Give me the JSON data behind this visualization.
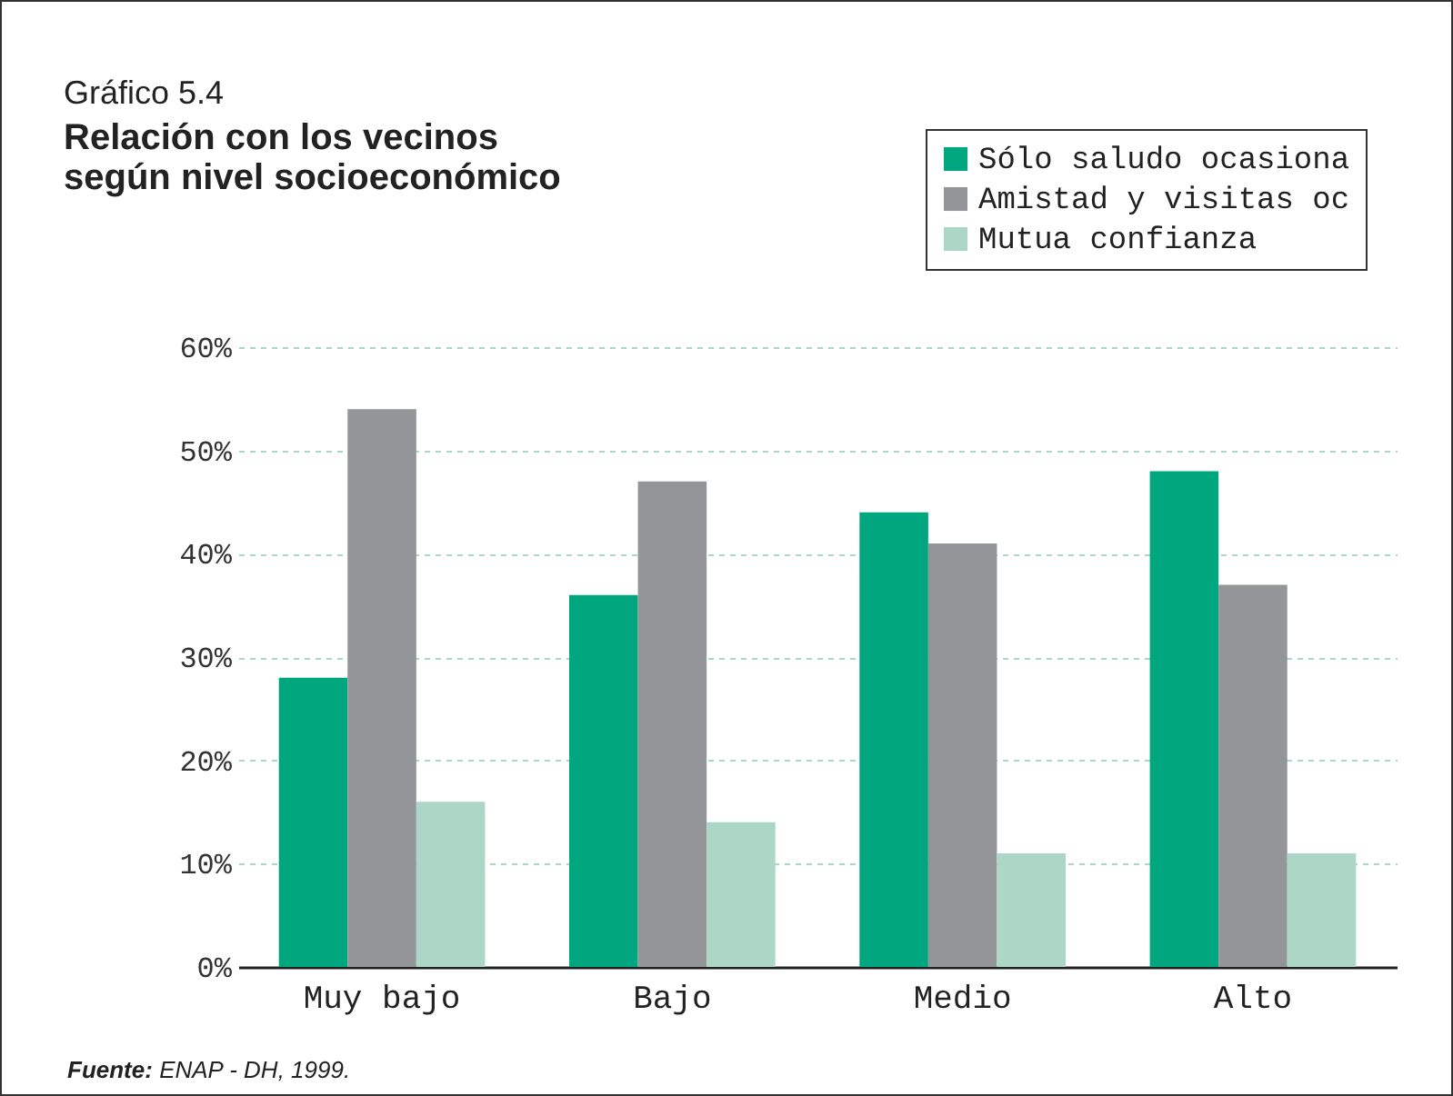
{
  "chart_data": {
    "type": "bar",
    "subtitle": "Gráfico 5.4",
    "title": "Relación con los vecinos\nsegún nivel socioeconómico",
    "categories": [
      "Muy bajo",
      "Bajo",
      "Medio",
      "Alto"
    ],
    "series": [
      {
        "name": "Sólo saludo ocasiona",
        "color": "#00a67e",
        "values": [
          28,
          36,
          44,
          48
        ]
      },
      {
        "name": "Amistad y visitas oc",
        "color": "#939598",
        "values": [
          54,
          47,
          41,
          37
        ]
      },
      {
        "name": "Mutua confianza",
        "color": "#acd6c5",
        "values": [
          16,
          14,
          11,
          11
        ]
      }
    ],
    "ylim": [
      0,
      60
    ],
    "yticks": [
      {
        "value": 0,
        "label": "0%"
      },
      {
        "value": 10,
        "label": "10%"
      },
      {
        "value": 20,
        "label": "20%"
      },
      {
        "value": 30,
        "label": "30%"
      },
      {
        "value": 40,
        "label": "40%"
      },
      {
        "value": 50,
        "label": "50%"
      },
      {
        "value": 60,
        "label": "60%"
      }
    ],
    "grid": "y",
    "legend": "top right",
    "annotations": [
      "Fuente: ENAP - DH, 1999."
    ]
  }
}
